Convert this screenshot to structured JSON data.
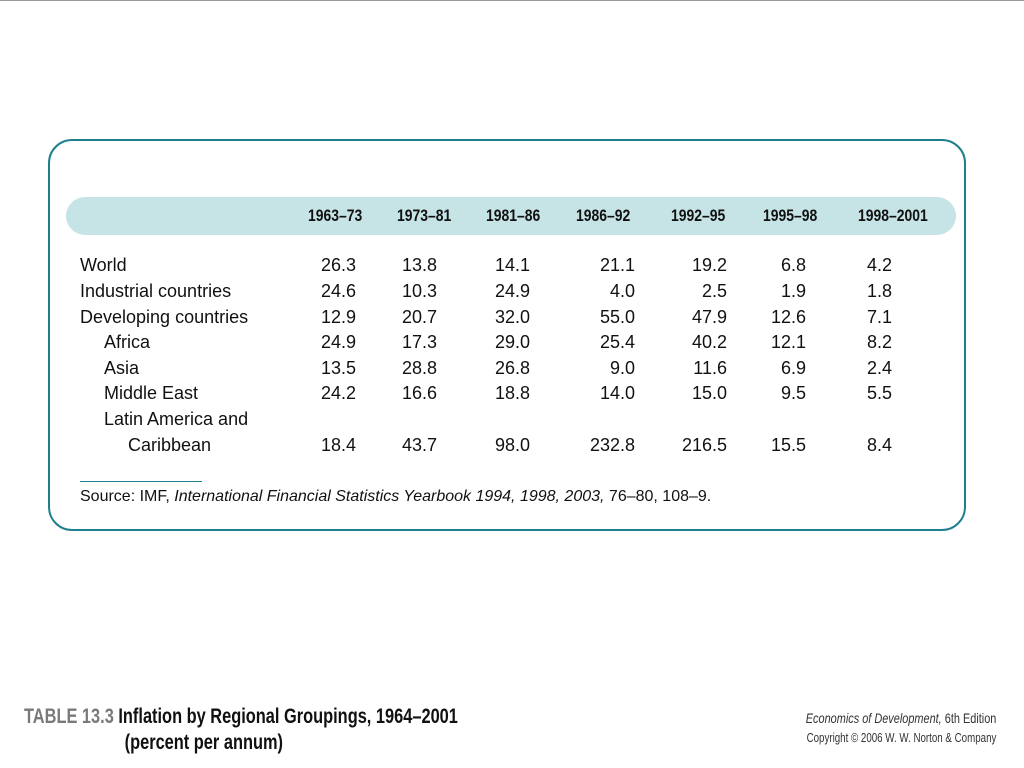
{
  "table": {
    "columns": [
      "1963–73",
      "1973–81",
      "1981–86",
      "1986–92",
      "1992–95",
      "1995–98",
      "1998–2001"
    ],
    "rows": [
      {
        "label": "World",
        "indent": 0,
        "values": [
          "26.3",
          "13.8",
          "14.1",
          "21.1",
          "19.2",
          "6.8",
          "4.2"
        ]
      },
      {
        "label": "Industrial countries",
        "indent": 0,
        "values": [
          "24.6",
          "10.3",
          "24.9",
          "4.0",
          "2.5",
          "1.9",
          "1.8"
        ]
      },
      {
        "label": "Developing countries",
        "indent": 0,
        "values": [
          "12.9",
          "20.7",
          "32.0",
          "55.0",
          "47.9",
          "12.6",
          "7.1"
        ]
      },
      {
        "label": "Africa",
        "indent": 1,
        "values": [
          "24.9",
          "17.3",
          "29.0",
          "25.4",
          "40.2",
          "12.1",
          "8.2"
        ]
      },
      {
        "label": "Asia",
        "indent": 1,
        "values": [
          "13.5",
          "28.8",
          "26.8",
          "9.0",
          "11.6",
          "6.9",
          "2.4"
        ]
      },
      {
        "label": "Middle East",
        "indent": 1,
        "values": [
          "24.2",
          "16.6",
          "18.8",
          "14.0",
          "15.0",
          "9.5",
          "5.5"
        ]
      },
      {
        "label": "Latin America and",
        "indent": 1,
        "values": [
          "",
          "",
          "",
          "",
          "",
          "",
          ""
        ]
      },
      {
        "label": "Caribbean",
        "indent": 2,
        "values": [
          "18.4",
          "43.7",
          "98.0",
          "232.8",
          "216.5",
          "15.5",
          "8.4"
        ]
      }
    ],
    "source_prefix": "Source: IMF, ",
    "source_title": "International Financial Statistics Yearbook 1994, 1998, 2003,",
    "source_suffix": " 76–80, 108–9."
  },
  "caption": {
    "table_number": "TABLE 13.3",
    "title_line1": "Inflation by Regional Groupings, 1964–2001",
    "title_line2": "(percent per annum)"
  },
  "footer": {
    "book_title": "Economics of Development,",
    "edition": " 6th Edition",
    "copyright": "Copyright © 2006 W. W. Norton & Company"
  },
  "colors": {
    "border": "#1f7f8e",
    "header_band": "#c6e3e6"
  }
}
